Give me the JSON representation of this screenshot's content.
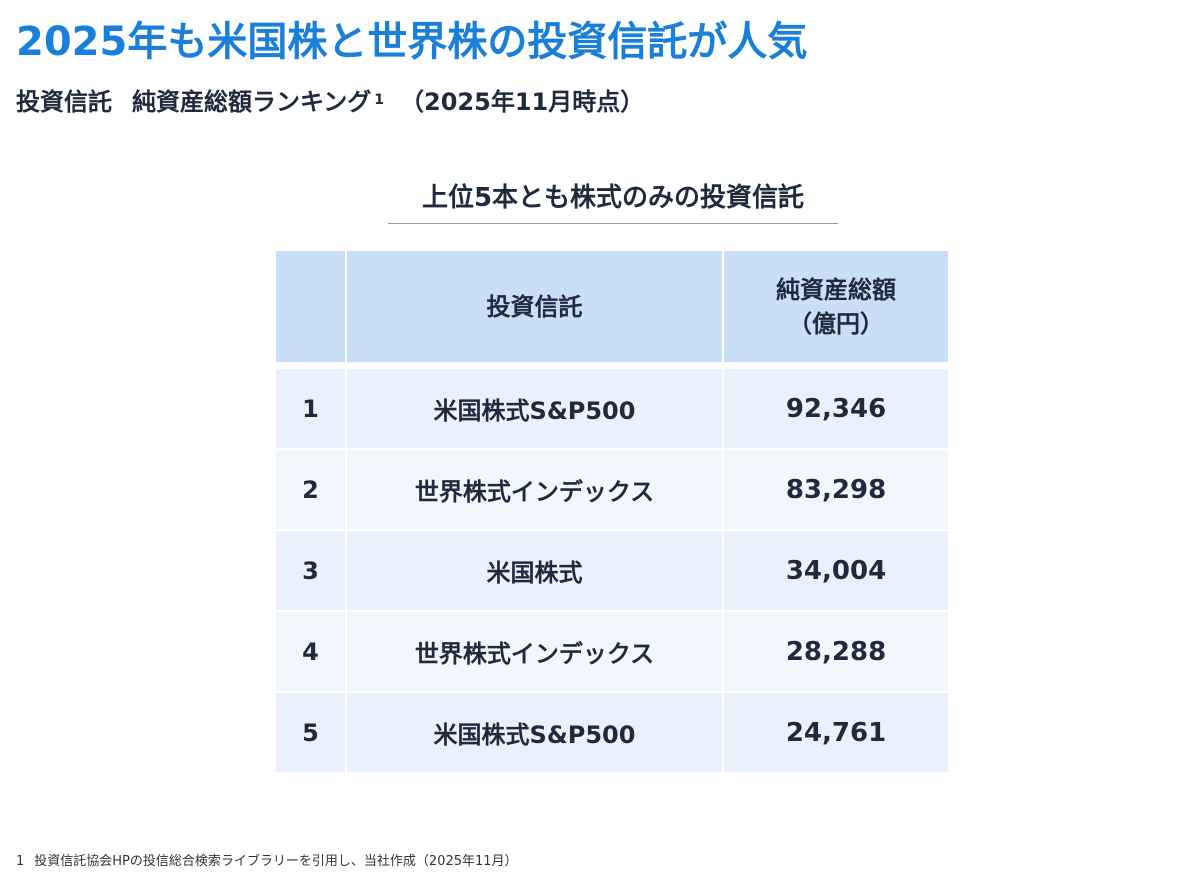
{
  "header": {
    "title": "2025年も米国株と世界株の投資信託が人気",
    "subtitle_part1": "投資信託",
    "subtitle_part2": "純資産総額ランキング",
    "subtitle_footnote_ref": "1",
    "subtitle_part3": "（2025年11月時点）"
  },
  "section": {
    "heading": "上位5本とも株式のみの投資信託"
  },
  "table": {
    "columns": {
      "rank": "",
      "fund": "投資信託",
      "value_line1": "純資産総額",
      "value_line2": "（億円）"
    },
    "rows": [
      {
        "rank": "1",
        "fund": "米国株式S&P500",
        "value": "92,346"
      },
      {
        "rank": "2",
        "fund": "世界株式インデックス",
        "value": "83,298"
      },
      {
        "rank": "3",
        "fund": "米国株式",
        "value": "34,004"
      },
      {
        "rank": "4",
        "fund": "世界株式インデックス",
        "value": "28,288"
      },
      {
        "rank": "5",
        "fund": "米国株式S&P500",
        "value": "24,761"
      }
    ]
  },
  "footnote": {
    "number": "1",
    "text": "投資信託協会HPの投信総合検索ライブラリーを引用し、当社作成（2025年11月）"
  },
  "colors": {
    "title": "#1a7fd8",
    "text": "#1f2a3d",
    "header_bg": "#c9dff8",
    "row_odd_bg": "#e8f1fc",
    "row_even_bg": "#f2f7fd"
  }
}
